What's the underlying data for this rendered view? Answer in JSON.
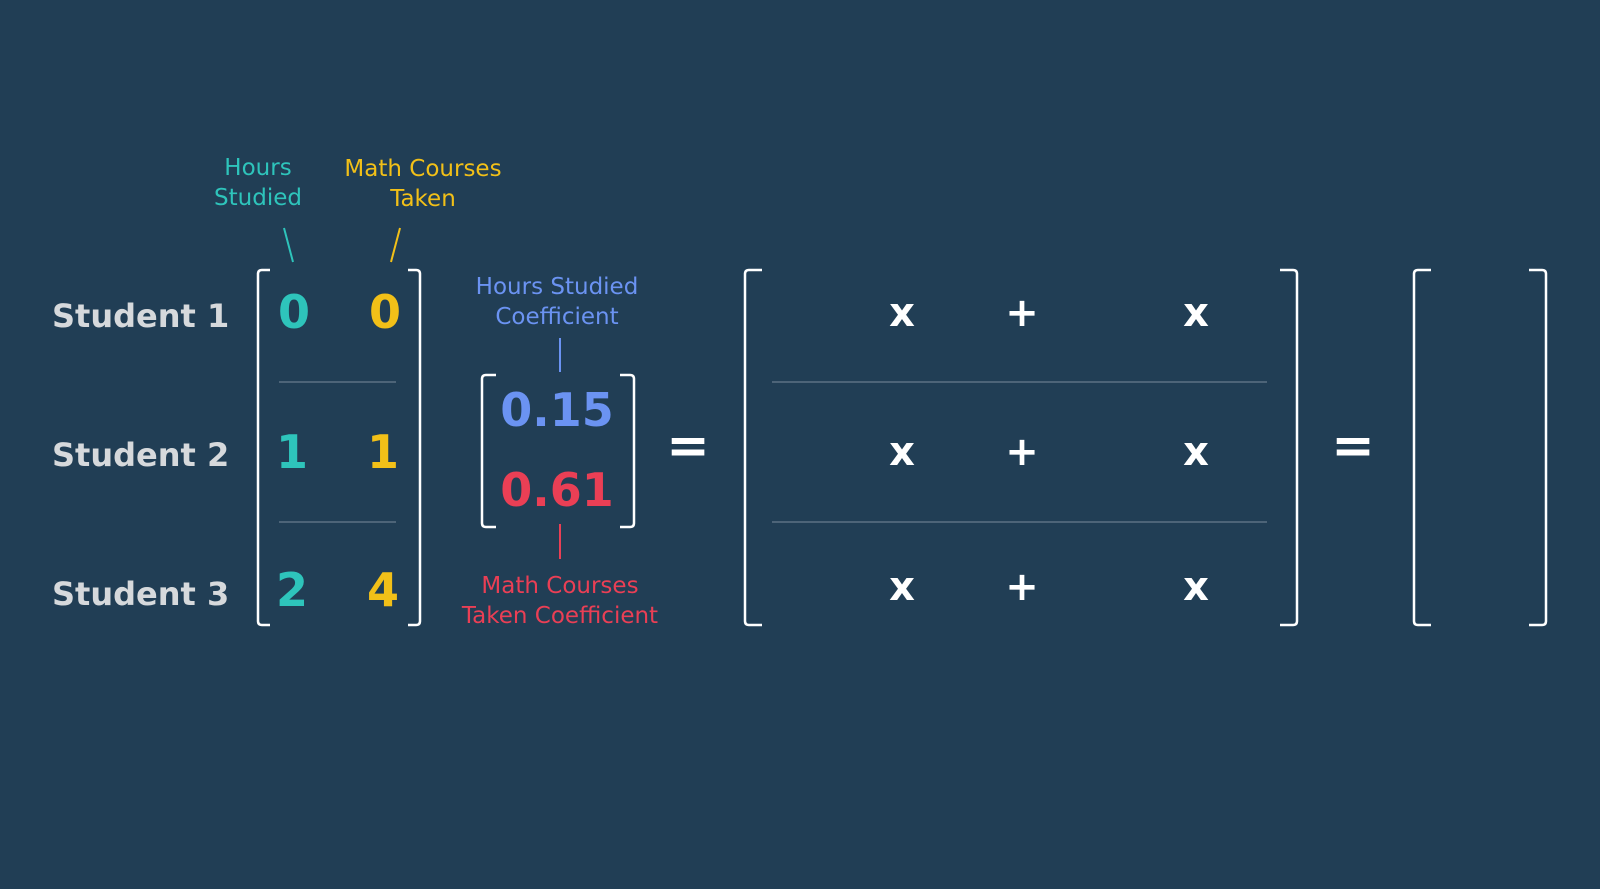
{
  "colors": {
    "background": "#213e55",
    "hours": "#2ec4bb",
    "math": "#f2c018",
    "coef_hours": "#6b93f2",
    "coef_math": "#ea3f55",
    "bracket": "#ffffff",
    "divider": "#4d6478",
    "student_text": "#d6d9dc"
  },
  "headers": {
    "hours_line1": "Hours",
    "hours_line2": "Studied",
    "math_line1": "Math Courses",
    "math_line2": "Taken"
  },
  "students": [
    {
      "label": "Student 1",
      "hours": "0",
      "math": "0"
    },
    {
      "label": "Student 2",
      "hours": "1",
      "math": "1"
    },
    {
      "label": "Student 3",
      "hours": "2",
      "math": "4"
    }
  ],
  "coefficients": {
    "hours_label_line1": "Hours Studied",
    "hours_label_line2": "Coefficient",
    "hours_value": "0.15",
    "math_value": "0.61",
    "math_label_line1": "Math Courses",
    "math_label_line2": "Taken Coefficient"
  },
  "equals_sign": "=",
  "multiply_sign": "x",
  "plus_sign": "+"
}
